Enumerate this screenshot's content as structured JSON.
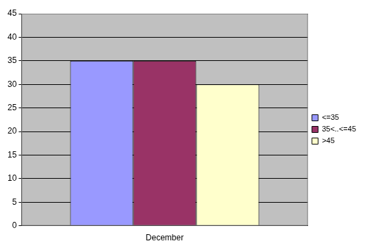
{
  "chart_data": {
    "type": "bar",
    "categories": [
      "December"
    ],
    "series": [
      {
        "name": "<=35",
        "color": "#9999ff",
        "values": [
          35
        ]
      },
      {
        "name": "35<..<=45",
        "color": "#993366",
        "values": [
          35
        ]
      },
      {
        "name": ">45",
        "color": "#ffffcc",
        "values": [
          30
        ]
      }
    ],
    "ylim": [
      0,
      45
    ],
    "yticks": [
      0,
      5,
      10,
      15,
      20,
      25,
      30,
      35,
      40,
      45
    ],
    "grid": true,
    "legend": "right"
  }
}
